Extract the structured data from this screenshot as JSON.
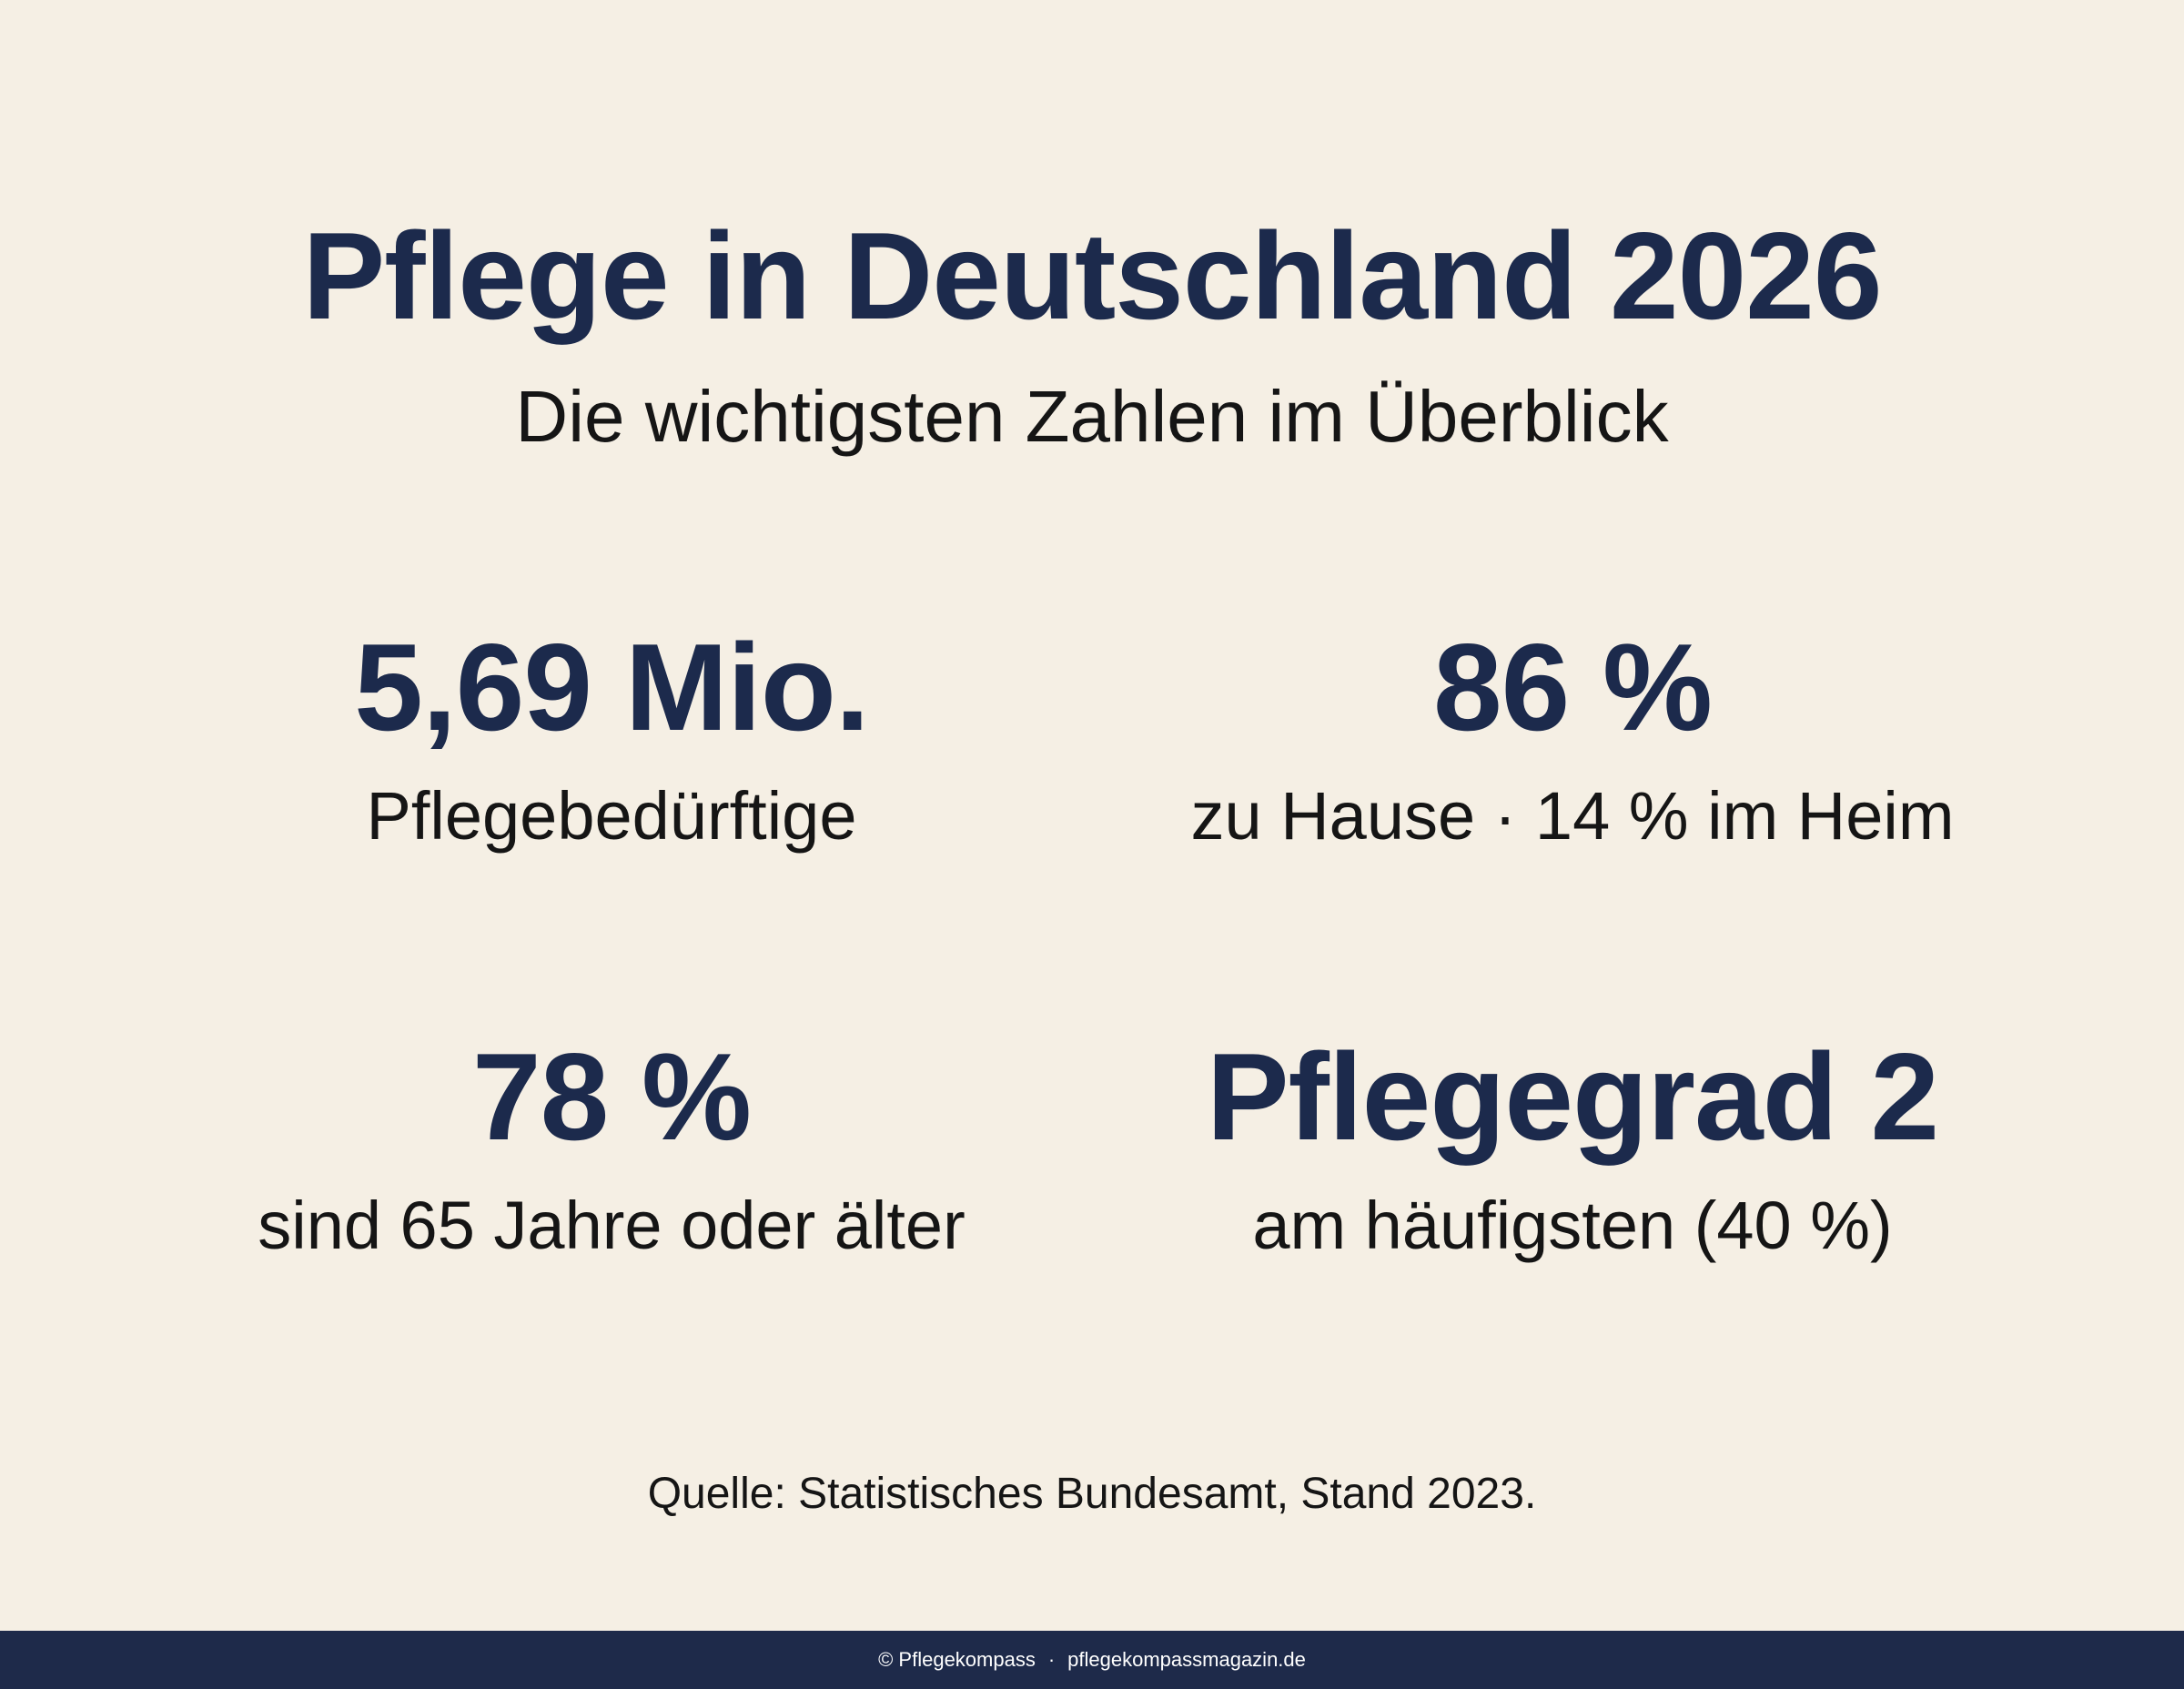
{
  "header": {
    "title": "Pflege in Deutschland 2026",
    "subtitle": "Die wichtigsten Zahlen im Überblick"
  },
  "stats": [
    {
      "value": "5,69 Mio.",
      "label": "Pflegebedürftige"
    },
    {
      "value": "86 %",
      "label": "zu Hause · 14 % im Heim"
    },
    {
      "value": "78 %",
      "label": "sind 65 Jahre oder älter"
    },
    {
      "value": "Pflegegrad 2",
      "label": "am häufigsten (40 %)"
    }
  ],
  "source": "Quelle: Statistisches Bundesamt, Stand 2023.",
  "footer": {
    "copyright": "© Pflegekompass",
    "separator": "·",
    "website": "pflegekompassmagazin.de"
  },
  "colors": {
    "background": "#f5efe4",
    "accent": "#1c2a4c",
    "footer_bar": "#1e2a4a"
  }
}
